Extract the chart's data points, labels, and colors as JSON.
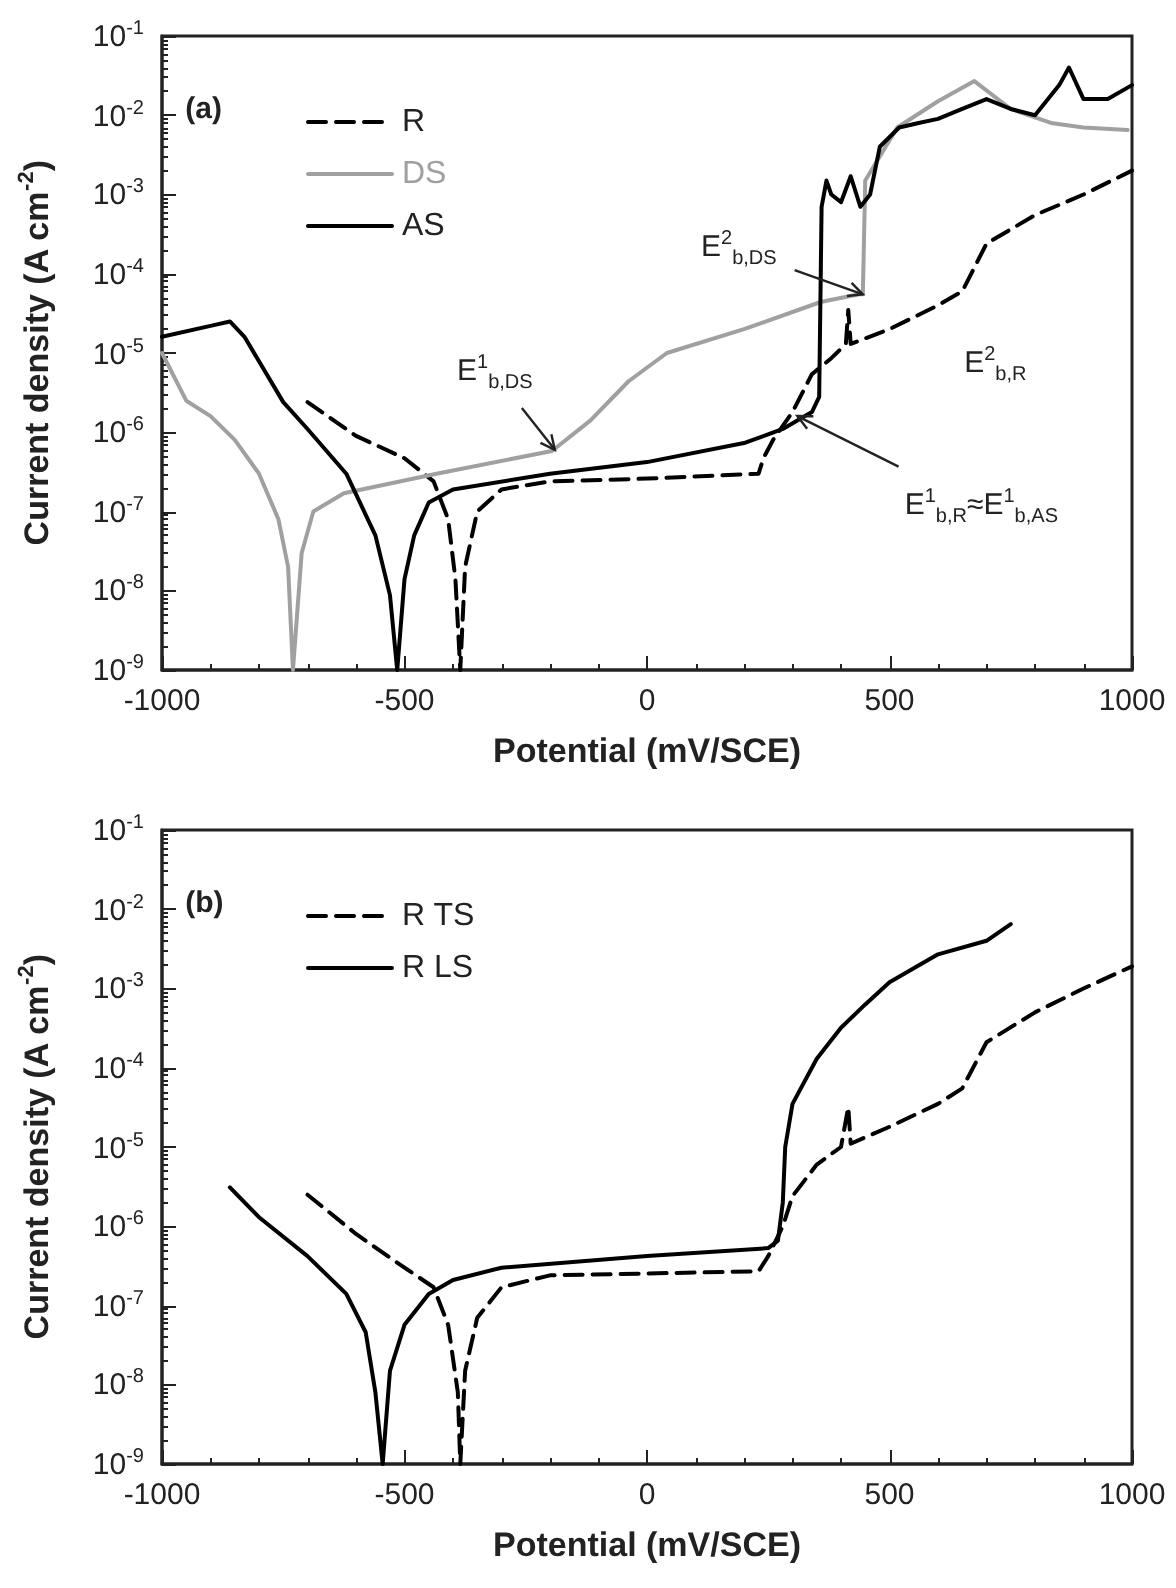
{
  "chart_data": [
    {
      "type": "line",
      "xlabel": "Potential (mV/SCE)",
      "ylabel": "Current density (A cm$^{-2}$)",
      "log": "y",
      "grid": false,
      "legend": "top left",
      "marker": "none",
      "xlim": [
        -1000,
        1000
      ],
      "xticks": [
        -1000,
        -500,
        0,
        500,
        1000
      ],
      "ylim": [
        1e-09,
        0.1
      ],
      "yticks": [
        {
          "value": 1e-09,
          "label": "10$^{-9}$"
        },
        {
          "value": 1e-08,
          "label": "10$^{-8}$"
        },
        {
          "value": 1e-07,
          "label": "10$^{-7}$"
        },
        {
          "value": 1e-06,
          "label": "10$^{-6}$"
        },
        {
          "value": 1e-05,
          "label": "10$^{-5}$"
        },
        {
          "value": 0.0001,
          "label": "10$^{-4}$"
        },
        {
          "value": 0.001,
          "label": "10$^{-3}$"
        },
        {
          "value": 0.01,
          "label": "10$^{-2}$"
        },
        {
          "value": 0.1,
          "label": "10$^{-1}$"
        }
      ],
      "annotations": [
        "(a)",
        {
          "text": "E$^{1}$$_{b,DS}$",
          "x": -190,
          "y": 6e-07
        },
        {
          "text": "E$^{2}$$_{b,DS}$",
          "x": 445,
          "y": 5.5e-05
        },
        "E$^{2}$$_{b,R}$",
        {
          "text": "E$^{1}$$_{b,R}$≈E$^{1}$$_{b,AS}$",
          "x": 310,
          "y": 1.6e-06
        }
      ],
      "series": [
        {
          "name": "R",
          "color": "#000000",
          "line_style": "dashed",
          "x": [
            -700,
            -600,
            -500,
            -440,
            -410,
            -395,
            -385,
            -375,
            -350,
            -300,
            -200,
            0,
            230,
            240,
            260,
            300,
            340,
            380,
            410,
            415,
            420,
            500,
            600,
            650,
            700,
            800,
            900,
            1000
          ],
          "values": [
            2.4e-06,
            9e-07,
            4.7e-07,
            2.4e-07,
            8e-08,
            1.4e-08,
            1e-09,
            2e-08,
            1e-07,
            1.9e-07,
            2.4e-07,
            2.6e-07,
            3e-07,
            4.7e-07,
            8e-07,
            1.8e-06,
            5.4e-06,
            8.6e-06,
            1.3e-05,
            3.5e-05,
            1.3e-05,
            2e-05,
            4e-05,
            6e-05,
            0.00024,
            0.00055,
            0.001,
            0.002
          ]
        },
        {
          "name": "DS",
          "color": "#a0a0a0",
          "line_style": "solid",
          "x": [
            -1000,
            -950,
            -900,
            -850,
            -800,
            -760,
            -740,
            -730,
            -712,
            -688,
            -625,
            -434,
            -196,
            -117,
            -38,
            41,
            200,
            358,
            437,
            445,
            450,
            516,
            600,
            675,
            750,
            833,
            900,
            991
          ],
          "values": [
            1e-05,
            2.5e-06,
            1.6e-06,
            8e-07,
            3e-07,
            8e-08,
            2e-08,
            1e-09,
            3e-08,
            1e-07,
            1.7e-07,
            3e-07,
            5.8e-07,
            1.4e-06,
            4.4e-06,
            1e-05,
            2e-05,
            4.4e-05,
            5.5e-05,
            5.5e-05,
            0.0015,
            0.007,
            0.015,
            0.027,
            0.012,
            0.008,
            0.007,
            0.0065
          ]
        },
        {
          "name": "AS",
          "color": "#000000",
          "line_style": "solid",
          "x": [
            -1000,
            -900,
            -860,
            -830,
            -750,
            -700,
            -620,
            -560,
            -530,
            -515,
            -500,
            -480,
            -450,
            -400,
            -200,
            0,
            200,
            280,
            340,
            355,
            360,
            370,
            380,
            400,
            420,
            440,
            460,
            480,
            520,
            560,
            600,
            650,
            700,
            750,
            800,
            850,
            870,
            900,
            950,
            1000
          ],
          "values": [
            1.6e-05,
            2.2e-05,
            2.5e-05,
            1.6e-05,
            2.4e-06,
            1.1e-06,
            3e-07,
            5e-08,
            8.8e-09,
            1e-09,
            1.4e-08,
            5e-08,
            1.3e-07,
            1.9e-07,
            3e-07,
            4.2e-07,
            7.3e-07,
            1.1e-06,
            1.8e-06,
            2.8e-06,
            0.0007,
            0.0015,
            0.001,
            0.0008,
            0.0017,
            0.0007,
            0.001,
            0.004,
            0.007,
            0.008,
            0.009,
            0.012,
            0.016,
            0.012,
            0.01,
            0.024,
            0.04,
            0.016,
            0.016,
            0.024
          ]
        }
      ]
    },
    {
      "type": "line",
      "xlabel": "Potential (mV/SCE)",
      "ylabel": "Current density (A cm$^{-2}$)",
      "log": "y",
      "grid": false,
      "legend": "top left",
      "marker": "none",
      "xlim": [
        -1000,
        1000
      ],
      "xticks": [
        -1000,
        -500,
        0,
        500,
        1000
      ],
      "ylim": [
        1e-09,
        0.1
      ],
      "yticks": [
        {
          "value": 1e-09,
          "label": "10$^{-9}$"
        },
        {
          "value": 1e-08,
          "label": "10$^{-8}$"
        },
        {
          "value": 1e-07,
          "label": "10$^{-7}$"
        },
        {
          "value": 1e-06,
          "label": "10$^{-6}$"
        },
        {
          "value": 1e-05,
          "label": "10$^{-5}$"
        },
        {
          "value": 0.0001,
          "label": "10$^{-4}$"
        },
        {
          "value": 0.001,
          "label": "10$^{-3}$"
        },
        {
          "value": 0.01,
          "label": "10$^{-2}$"
        },
        {
          "value": 0.1,
          "label": "10$^{-1}$"
        }
      ],
      "annotations": [
        "(b)"
      ],
      "series": [
        {
          "name": "R TS",
          "color": "#000000",
          "line_style": "dashed",
          "x": [
            -700,
            -600,
            -500,
            -440,
            -410,
            -390,
            -385,
            -375,
            -350,
            -300,
            -200,
            230,
            250,
            280,
            300,
            350,
            400,
            415,
            420,
            500,
            600,
            650,
            700,
            800,
            900,
            1000
          ],
          "values": [
            2.5e-06,
            8e-07,
            3e-07,
            1.7e-07,
            5.7e-08,
            8e-09,
            1e-09,
            1.5e-08,
            7e-08,
            1.7e-07,
            2.4e-07,
            2.7e-07,
            4.2e-07,
            1e-06,
            2.4e-06,
            6e-06,
            1e-05,
            3.2e-05,
            1.1e-05,
            1.8e-05,
            3.5e-05,
            5.5e-05,
            0.00021,
            0.0005,
            0.001,
            0.0019
          ]
        },
        {
          "name": "R LS",
          "color": "#000000",
          "line_style": "solid",
          "x": [
            -860,
            -800,
            -700,
            -620,
            -580,
            -560,
            -545,
            -530,
            -500,
            -450,
            -400,
            -300,
            0,
            250,
            270,
            280,
            285,
            300,
            350,
            400,
            450,
            500,
            600,
            700,
            750
          ],
          "values": [
            3.1e-06,
            1.3e-06,
            4.2e-07,
            1.4e-07,
            4.6e-08,
            8e-09,
            1e-09,
            1.5e-08,
            5.7e-08,
            1.4e-07,
            2.1e-07,
            3e-07,
            4.2e-07,
            5.3e-07,
            6.6e-07,
            2e-06,
            1e-05,
            3.5e-05,
            0.00013,
            0.00032,
            0.00063,
            0.0012,
            0.0027,
            0.004,
            0.0065
          ]
        }
      ]
    }
  ]
}
